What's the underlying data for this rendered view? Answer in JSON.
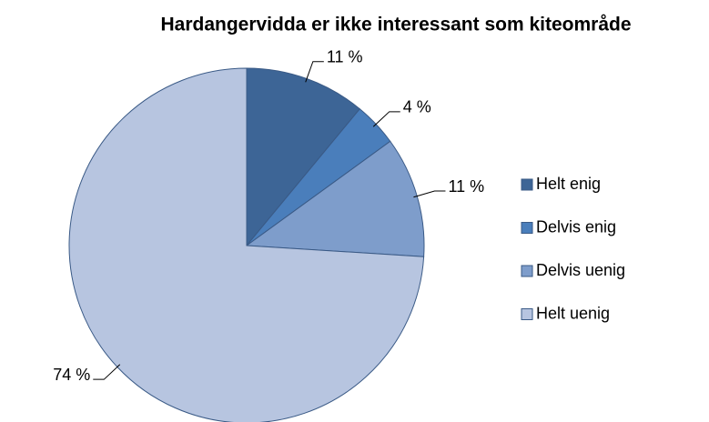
{
  "chart_data": {
    "type": "pie",
    "title": "Hardangervidda er ikke interessant som kiteområde",
    "categories": [
      "Helt enig",
      "Delvis enig",
      "Delvis uenig",
      "Helt uenig"
    ],
    "values": [
      11,
      4,
      11,
      74
    ],
    "value_labels": [
      "11 %",
      "4 %",
      "11 %",
      "74 %"
    ],
    "colors": [
      "#3d6596",
      "#4a7ebb",
      "#7e9dcb",
      "#b7c5e0"
    ],
    "legend": "right"
  }
}
